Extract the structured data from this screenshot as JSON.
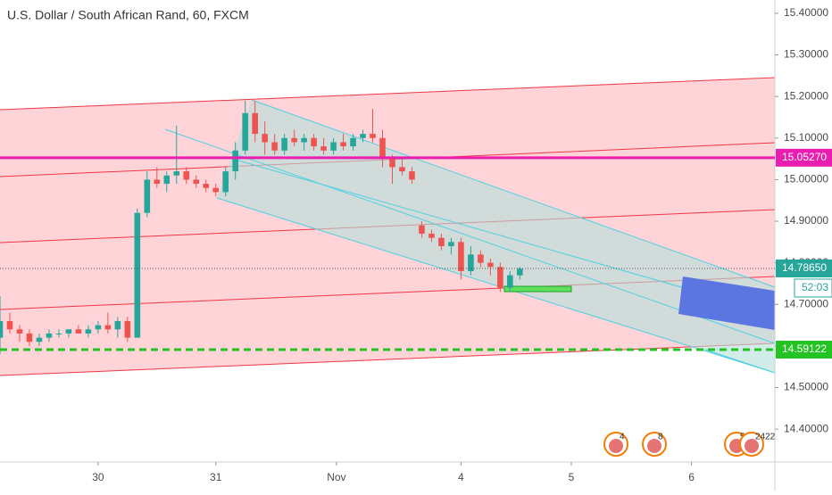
{
  "chart_data": {
    "type": "candlestick",
    "title": "U.S. Dollar / South African Rand, 60, FXCM",
    "x": [
      0,
      2,
      4,
      6,
      8,
      10,
      12,
      14,
      16,
      18,
      20,
      22,
      24,
      26,
      28,
      30,
      32,
      34,
      36,
      38,
      40,
      42,
      44,
      46,
      48,
      50,
      52,
      54,
      56,
      58,
      60,
      62,
      64,
      66,
      68,
      70,
      72,
      74,
      76,
      78,
      80,
      82,
      84,
      86,
      88,
      90,
      92,
      94,
      96,
      98,
      100,
      102,
      104,
      106
    ],
    "open": [
      14.62,
      14.66,
      14.64,
      14.63,
      14.61,
      14.62,
      14.63,
      14.63,
      14.64,
      14.63,
      14.64,
      14.65,
      14.64,
      14.66,
      14.62,
      14.92,
      15.0,
      14.99,
      15.01,
      15.02,
      15.0,
      14.99,
      14.98,
      14.97,
      15.02,
      15.07,
      15.16,
      15.11,
      15.09,
      15.07,
      15.1,
      15.09,
      15.1,
      15.08,
      15.07,
      15.09,
      15.08,
      15.1,
      15.11,
      15.1,
      15.05,
      15.03,
      15.02,
      14.89,
      14.87,
      14.86,
      14.84,
      14.85,
      14.78,
      14.82,
      14.8,
      14.79,
      14.74,
      14.77
    ],
    "high": [
      14.72,
      14.68,
      14.65,
      14.64,
      14.63,
      14.64,
      14.64,
      14.64,
      14.65,
      14.65,
      14.66,
      14.68,
      14.67,
      14.67,
      14.93,
      15.02,
      15.03,
      15.02,
      15.13,
      15.03,
      15.01,
      15.0,
      14.99,
      15.03,
      15.09,
      15.19,
      15.19,
      15.14,
      15.11,
      15.11,
      15.12,
      15.11,
      15.11,
      15.1,
      15.1,
      15.11,
      15.11,
      15.12,
      15.17,
      15.12,
      15.06,
      15.05,
      15.03,
      14.9,
      14.88,
      14.87,
      14.86,
      14.86,
      14.84,
      14.83,
      14.81,
      14.8,
      14.78,
      14.79
    ],
    "low": [
      14.58,
      14.63,
      14.61,
      14.6,
      14.6,
      14.61,
      14.62,
      14.62,
      14.63,
      14.62,
      14.63,
      14.63,
      14.62,
      14.61,
      14.62,
      14.91,
      14.98,
      14.97,
      14.99,
      14.99,
      14.98,
      14.97,
      14.96,
      14.96,
      15.0,
      15.06,
      15.09,
      15.06,
      15.06,
      15.06,
      15.08,
      15.07,
      15.07,
      15.06,
      15.06,
      15.07,
      15.07,
      15.09,
      15.09,
      15.03,
      14.99,
      15.01,
      14.99,
      14.86,
      14.85,
      14.83,
      14.82,
      14.76,
      14.77,
      14.79,
      14.77,
      14.73,
      14.73,
      14.76
    ],
    "close": [
      14.66,
      14.64,
      14.63,
      14.61,
      14.62,
      14.63,
      14.63,
      14.64,
      14.63,
      14.64,
      14.65,
      14.64,
      14.66,
      14.62,
      14.92,
      15.0,
      14.99,
      15.01,
      15.02,
      15.0,
      14.99,
      14.98,
      14.97,
      15.02,
      15.07,
      15.16,
      15.11,
      15.09,
      15.07,
      15.1,
      15.09,
      15.1,
      15.08,
      15.07,
      15.09,
      15.08,
      15.1,
      15.11,
      15.1,
      15.05,
      15.03,
      15.02,
      15.0,
      14.87,
      14.86,
      14.84,
      14.85,
      14.78,
      14.82,
      14.8,
      14.79,
      14.74,
      14.77,
      14.786
    ],
    "up_color": "#26a69a",
    "down_color": "#ef5350",
    "xlim": [
      0,
      158
    ],
    "xticks": [
      {
        "value": 20,
        "label": "30"
      },
      {
        "value": 44,
        "label": "31"
      },
      {
        "value": 68.6,
        "label": "Nov"
      },
      {
        "value": 94,
        "label": "4"
      },
      {
        "value": 116.5,
        "label": "5"
      },
      {
        "value": 141,
        "label": "6"
      }
    ],
    "ylim": [
      14.321,
      15.432
    ],
    "yticks": [
      {
        "value": 14.4,
        "label": "14.40000"
      },
      {
        "value": 14.5,
        "label": "14.50000"
      },
      {
        "value": 14.6,
        "label": "14.60000"
      },
      {
        "value": 14.7,
        "label": "14.70000"
      },
      {
        "value": 14.8,
        "label": "14.80000"
      },
      {
        "value": 14.9,
        "label": "14.90000"
      },
      {
        "value": 15.0,
        "label": "15.00000"
      },
      {
        "value": 15.1,
        "label": "15.10000"
      },
      {
        "value": 15.2,
        "label": "15.20000"
      },
      {
        "value": 15.3,
        "label": "15.30000"
      },
      {
        "value": 15.4,
        "label": "15.40000"
      }
    ],
    "hlines": [
      {
        "value": 15.0527,
        "label": "15.05270",
        "color": "#e91eb0",
        "style": "solid"
      },
      {
        "value": 14.7865,
        "label": "14.78650",
        "color": "#26a69a",
        "style": "dotted"
      },
      {
        "value": 14.59122,
        "label": "14.59122",
        "color": "#22c322",
        "style": "dashed"
      }
    ],
    "countdown": "52:03",
    "events": [
      "4",
      "8",
      "5",
      "2422"
    ]
  }
}
